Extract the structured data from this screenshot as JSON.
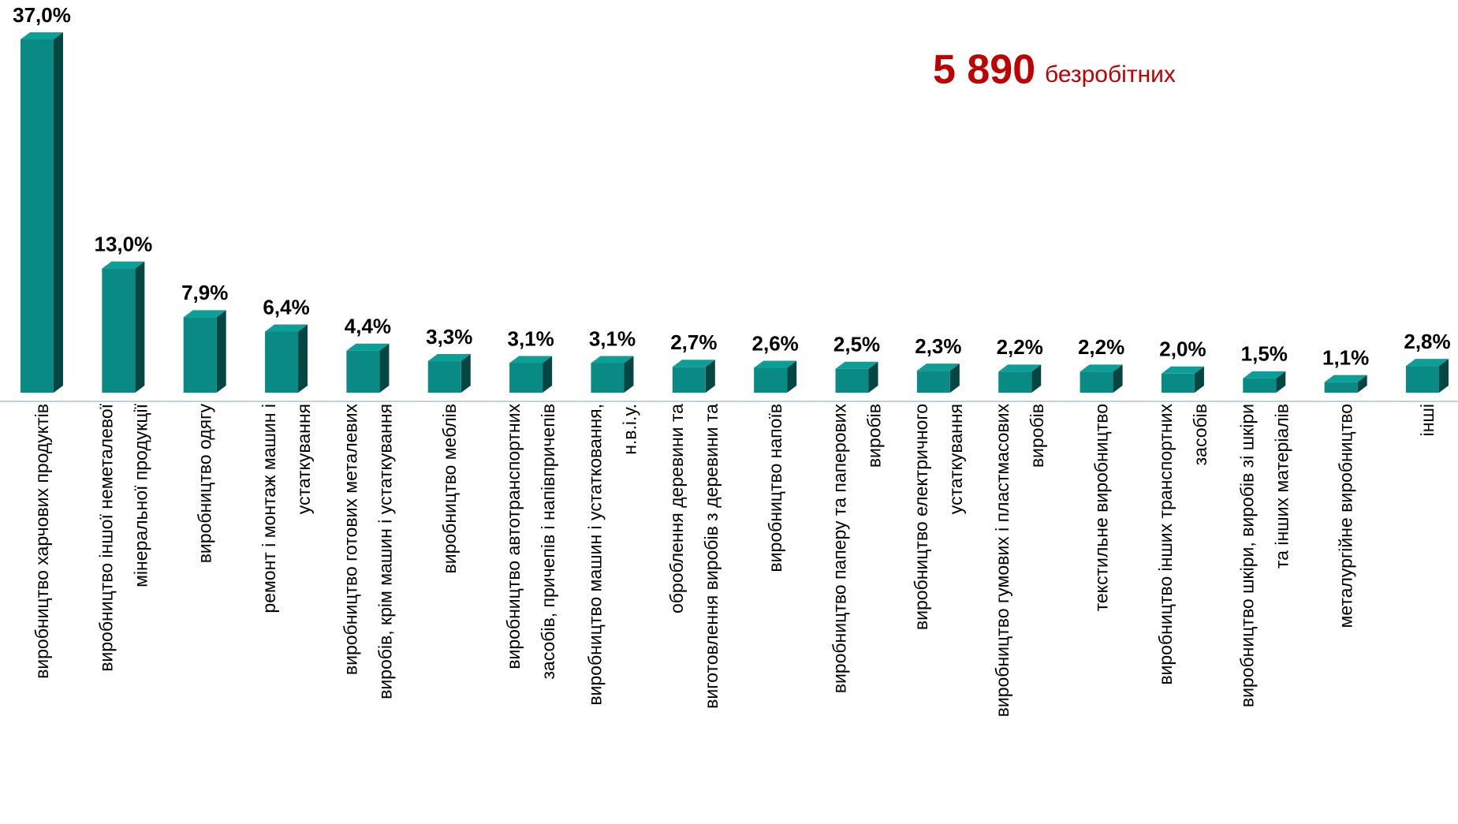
{
  "chart_data": {
    "type": "bar3d",
    "annotation": {
      "value": "5 890",
      "label": "безробітних"
    },
    "categories": [
      "виробництво харчових продуктів",
      "виробництво іншої неметалевої\nмінеральної продукції",
      "виробництво одягу",
      "ремонт і монтаж машин і\nустаткування",
      "виробництво готових металевих\nвиробів, крім машин і устаткування",
      "виробництво меблів",
      "виробництво автотранспортних\nзасобів, причепів і напівпричепів",
      "виробництво машин і устатковання,\nн.в.і.у.",
      "оброблення деревини та\nвиготовлення виробів з деревини та",
      "виробництво напоїв",
      "виробництво паперу та паперових\nвиробів",
      "виробництво електричного\nустаткування",
      "виробництво гумових і пластмасових\nвиробів",
      "текстильне виробництво",
      "виробництво інших транспортних\nзасобів",
      "виробництво шкіри, виробів зі шкіри\nта інших матеріалів",
      "металургійне виробництво",
      "інші"
    ],
    "values": [
      37.0,
      13.0,
      7.9,
      6.4,
      4.4,
      3.3,
      3.1,
      3.1,
      2.7,
      2.6,
      2.5,
      2.3,
      2.2,
      2.2,
      2.0,
      1.5,
      1.1,
      2.8
    ],
    "value_labels": [
      "37,0%",
      "13,0%",
      "7,9%",
      "6,4%",
      "4,4%",
      "3,3%",
      "3,1%",
      "3,1%",
      "2,7%",
      "2,6%",
      "2,5%",
      "2,3%",
      "2,2%",
      "2,2%",
      "2,0%",
      "1,5%",
      "1,1%",
      "2,8%"
    ],
    "color": "#0a8a84"
  }
}
